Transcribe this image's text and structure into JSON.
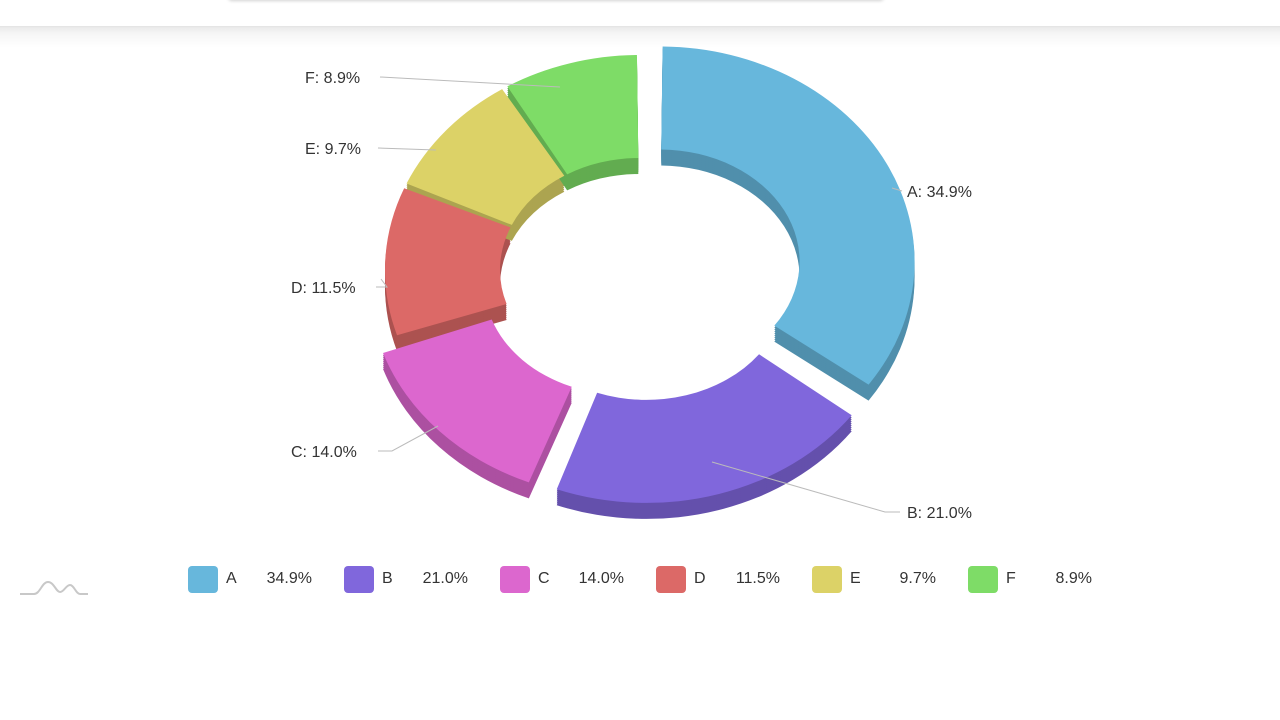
{
  "chart_data": {
    "type": "pie",
    "subtype": "3d-donut",
    "title": "",
    "categories": [
      "A",
      "B",
      "C",
      "D",
      "E",
      "F"
    ],
    "values": [
      34.9,
      21.0,
      14.0,
      11.5,
      9.7,
      8.9
    ],
    "unit": "%",
    "colors": [
      "#67b7dc",
      "#8067dc",
      "#dc67ce",
      "#dc6967",
      "#dcd267",
      "#7edc67"
    ],
    "exploded": [
      "A",
      "B",
      "C"
    ],
    "start_angle": "12 o'clock, clockwise",
    "data_labels": [
      "A: 34.9%",
      "B: 21.0%",
      "C: 14.0%",
      "D: 11.5%",
      "E: 9.7%",
      "F: 8.9%"
    ],
    "legend_position": "bottom"
  },
  "labels": {
    "A": "A: 34.9%",
    "B": "B: 21.0%",
    "C": "C: 14.0%",
    "D": "D: 11.5%",
    "E": "E: 9.7%",
    "F": "F: 8.9%"
  },
  "legend": [
    {
      "name": "A",
      "value": "34.9%",
      "color": "#67b7dc"
    },
    {
      "name": "B",
      "value": "21.0%",
      "color": "#8067dc"
    },
    {
      "name": "C",
      "value": "14.0%",
      "color": "#dc67ce"
    },
    {
      "name": "D",
      "value": "11.5%",
      "color": "#dc6967"
    },
    {
      "name": "E",
      "value": "9.7%",
      "color": "#dcd267"
    },
    {
      "name": "F",
      "value": "8.9%",
      "color": "#7edc67"
    }
  ],
  "icons": {
    "logo": "chart-library-logo-icon"
  }
}
